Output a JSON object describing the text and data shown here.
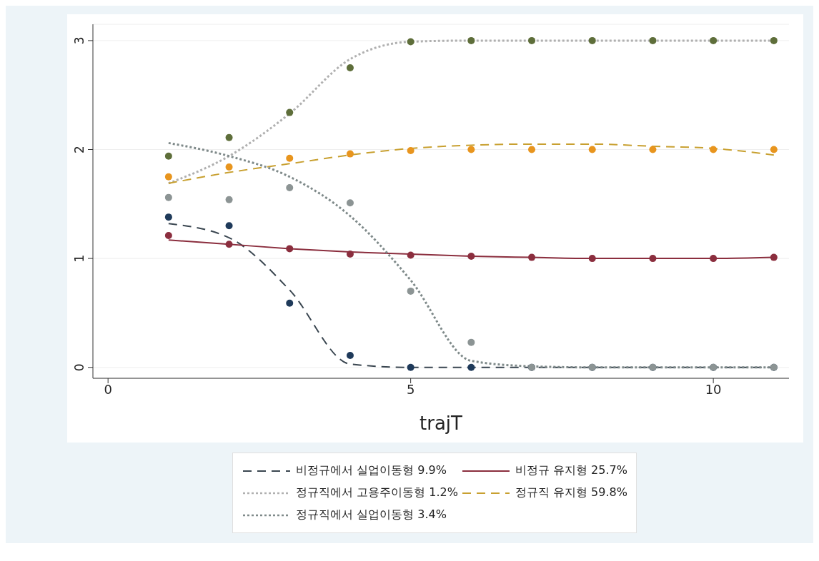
{
  "chart_data": {
    "type": "line",
    "xlabel": "trajT",
    "x": [
      1,
      2,
      3,
      4,
      5,
      6,
      7,
      8,
      9,
      10,
      11
    ],
    "xlim": [
      -0.25,
      11.25
    ],
    "xticks": [
      0,
      5,
      10
    ],
    "ylim": [
      -0.1,
      3.15
    ],
    "yticks": [
      0,
      1,
      2,
      3
    ],
    "grid": "y",
    "legend": "bottom",
    "series": [
      {
        "type": "scatter",
        "marker": "circle",
        "color": "#1f3a5a",
        "values": [
          1.38,
          1.3,
          0.59,
          0.11,
          0,
          0,
          0,
          0,
          0,
          0,
          0
        ]
      },
      {
        "type": "scatter",
        "marker": "circle",
        "color": "#8b2e3e",
        "values": [
          1.21,
          1.13,
          1.09,
          1.04,
          1.03,
          1.02,
          1.01,
          1.0,
          1.0,
          1.0,
          1.01
        ]
      },
      {
        "type": "scatter",
        "marker": "circle",
        "color": "#5e6e3a",
        "values": [
          1.94,
          2.11,
          2.34,
          2.75,
          2.99,
          3,
          3,
          3,
          3,
          3,
          3
        ]
      },
      {
        "type": "scatter",
        "marker": "circle",
        "color": "#e8951e",
        "values": [
          1.75,
          1.84,
          1.92,
          1.96,
          1.99,
          2,
          2,
          2,
          2,
          2,
          2
        ]
      },
      {
        "type": "scatter",
        "marker": "circle",
        "color": "#8c9494",
        "values": [
          1.56,
          1.54,
          1.65,
          1.51,
          0.7,
          0.23,
          0,
          0,
          0,
          0,
          0
        ]
      },
      {
        "name": "비정규에서 실업이동형 9.9%",
        "marker": "none",
        "line_style": "dashed",
        "color": "#3a4650",
        "values": [
          1.32,
          1.19,
          0.71,
          0.03,
          0,
          0,
          0,
          0,
          0,
          0,
          0
        ]
      },
      {
        "name": "비정규 유지형 25.7%",
        "marker": "none",
        "line_style": "solid",
        "color": "#8b2e3e",
        "values": [
          1.17,
          1.13,
          1.09,
          1.06,
          1.04,
          1.02,
          1.01,
          1.0,
          1.0,
          1.0,
          1.01
        ]
      },
      {
        "name": "정규직에서 고용주이동형 1.2%",
        "marker": "none",
        "line_style": "dotted",
        "color": "#b0b0b0",
        "values": [
          1.69,
          1.94,
          2.33,
          2.83,
          2.99,
          3,
          3,
          3,
          3,
          3,
          3
        ]
      },
      {
        "name": "정규직 유지형 59.8%",
        "marker": "none",
        "line_style": "dashed",
        "color": "#c8a030",
        "values": [
          1.69,
          1.79,
          1.87,
          1.95,
          2.01,
          2.04,
          2.05,
          2.05,
          2.03,
          2.01,
          1.95
        ]
      },
      {
        "name": "정규직에서 실업이동형 3.4%",
        "marker": "none",
        "line_style": "dotted",
        "color": "#7f8a8a",
        "values": [
          2.06,
          1.94,
          1.75,
          1.39,
          0.8,
          0.06,
          0.01,
          0,
          0,
          0,
          0
        ]
      }
    ]
  }
}
